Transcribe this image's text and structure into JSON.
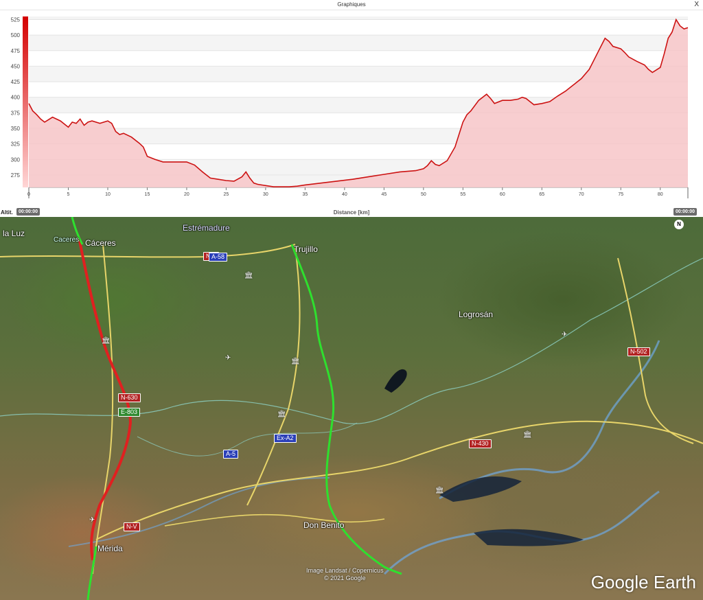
{
  "window": {
    "title": "Graphiques",
    "close_label": "X"
  },
  "chart_data": {
    "type": "area",
    "title": "",
    "xlabel": "Distance [km]",
    "ylabel": "Altit.",
    "xlim": [
      0,
      83.5
    ],
    "ylim": [
      255,
      530
    ],
    "x_ticks": [
      0,
      5,
      10,
      15,
      20,
      25,
      30,
      35,
      40,
      45,
      50,
      55,
      60,
      65,
      70,
      75,
      80
    ],
    "y_ticks": [
      275,
      300,
      325,
      350,
      375,
      400,
      425,
      450,
      475,
      500,
      525
    ],
    "time_start": "00:00:00",
    "time_end": "00:00:00",
    "series": [
      {
        "color": "#cc1111",
        "fill": "#f7c6c8",
        "x": [
          0,
          0.5,
          1,
          1.5,
          2,
          3,
          4,
          5,
          5.5,
          6,
          6.5,
          7,
          7.5,
          8,
          9,
          10,
          10.5,
          11,
          11.5,
          12,
          13,
          14,
          14.5,
          15,
          16,
          17,
          18,
          19,
          20,
          21,
          22,
          23,
          24,
          25,
          26,
          27,
          27.5,
          28,
          28.5,
          29,
          30,
          31,
          32,
          33,
          34,
          35,
          37,
          39,
          41,
          43,
          45,
          47,
          49,
          50,
          50.5,
          51,
          51.5,
          52,
          53,
          54,
          55,
          55.5,
          56,
          57,
          58,
          58.5,
          59,
          60,
          61,
          62,
          62.5,
          63,
          64,
          65,
          66,
          67,
          68,
          69,
          70,
          71,
          72,
          73,
          73.5,
          74,
          75,
          75.5,
          76,
          77,
          78,
          78.5,
          79,
          80,
          80.5,
          81,
          81.5,
          82,
          82.5,
          83,
          83.5
        ],
        "y": [
          390,
          378,
          372,
          365,
          360,
          368,
          362,
          352,
          360,
          358,
          365,
          355,
          360,
          362,
          358,
          362,
          358,
          345,
          340,
          342,
          336,
          326,
          320,
          305,
          300,
          296,
          296,
          296,
          296,
          291,
          280,
          270,
          268,
          266,
          265,
          272,
          280,
          270,
          262,
          260,
          258,
          256,
          256,
          256,
          257,
          259,
          262,
          265,
          268,
          272,
          276,
          280,
          282,
          285,
          290,
          298,
          292,
          290,
          298,
          320,
          360,
          372,
          378,
          395,
          405,
          398,
          390,
          395,
          395,
          397,
          400,
          398,
          388,
          390,
          393,
          402,
          410,
          420,
          430,
          445,
          470,
          495,
          490,
          482,
          478,
          472,
          465,
          458,
          452,
          445,
          440,
          448,
          470,
          495,
          505,
          525,
          515,
          510,
          512
        ]
      }
    ]
  },
  "map": {
    "places": {
      "caceres": "Cáceres",
      "caceres_small": "Caceres",
      "trujillo": "Trujillo",
      "logrosan": "Logrosán",
      "don_benito": "Don Benito",
      "merida": "Mérida",
      "la_luz": "la Luz",
      "region": "Estrémadure"
    },
    "roads": {
      "a58": "A-58",
      "n521": "N-5",
      "n630": "N-630",
      "e803": "E-803",
      "exa2": "Ex-A2",
      "a5": "A-5",
      "n430": "N-430",
      "n502": "N-502",
      "nv": "N-V"
    },
    "credit_line1": "Image Landsat / Copernicus",
    "credit_line2": "© 2021 Google",
    "logo": "Google Earth",
    "compass": "N"
  }
}
